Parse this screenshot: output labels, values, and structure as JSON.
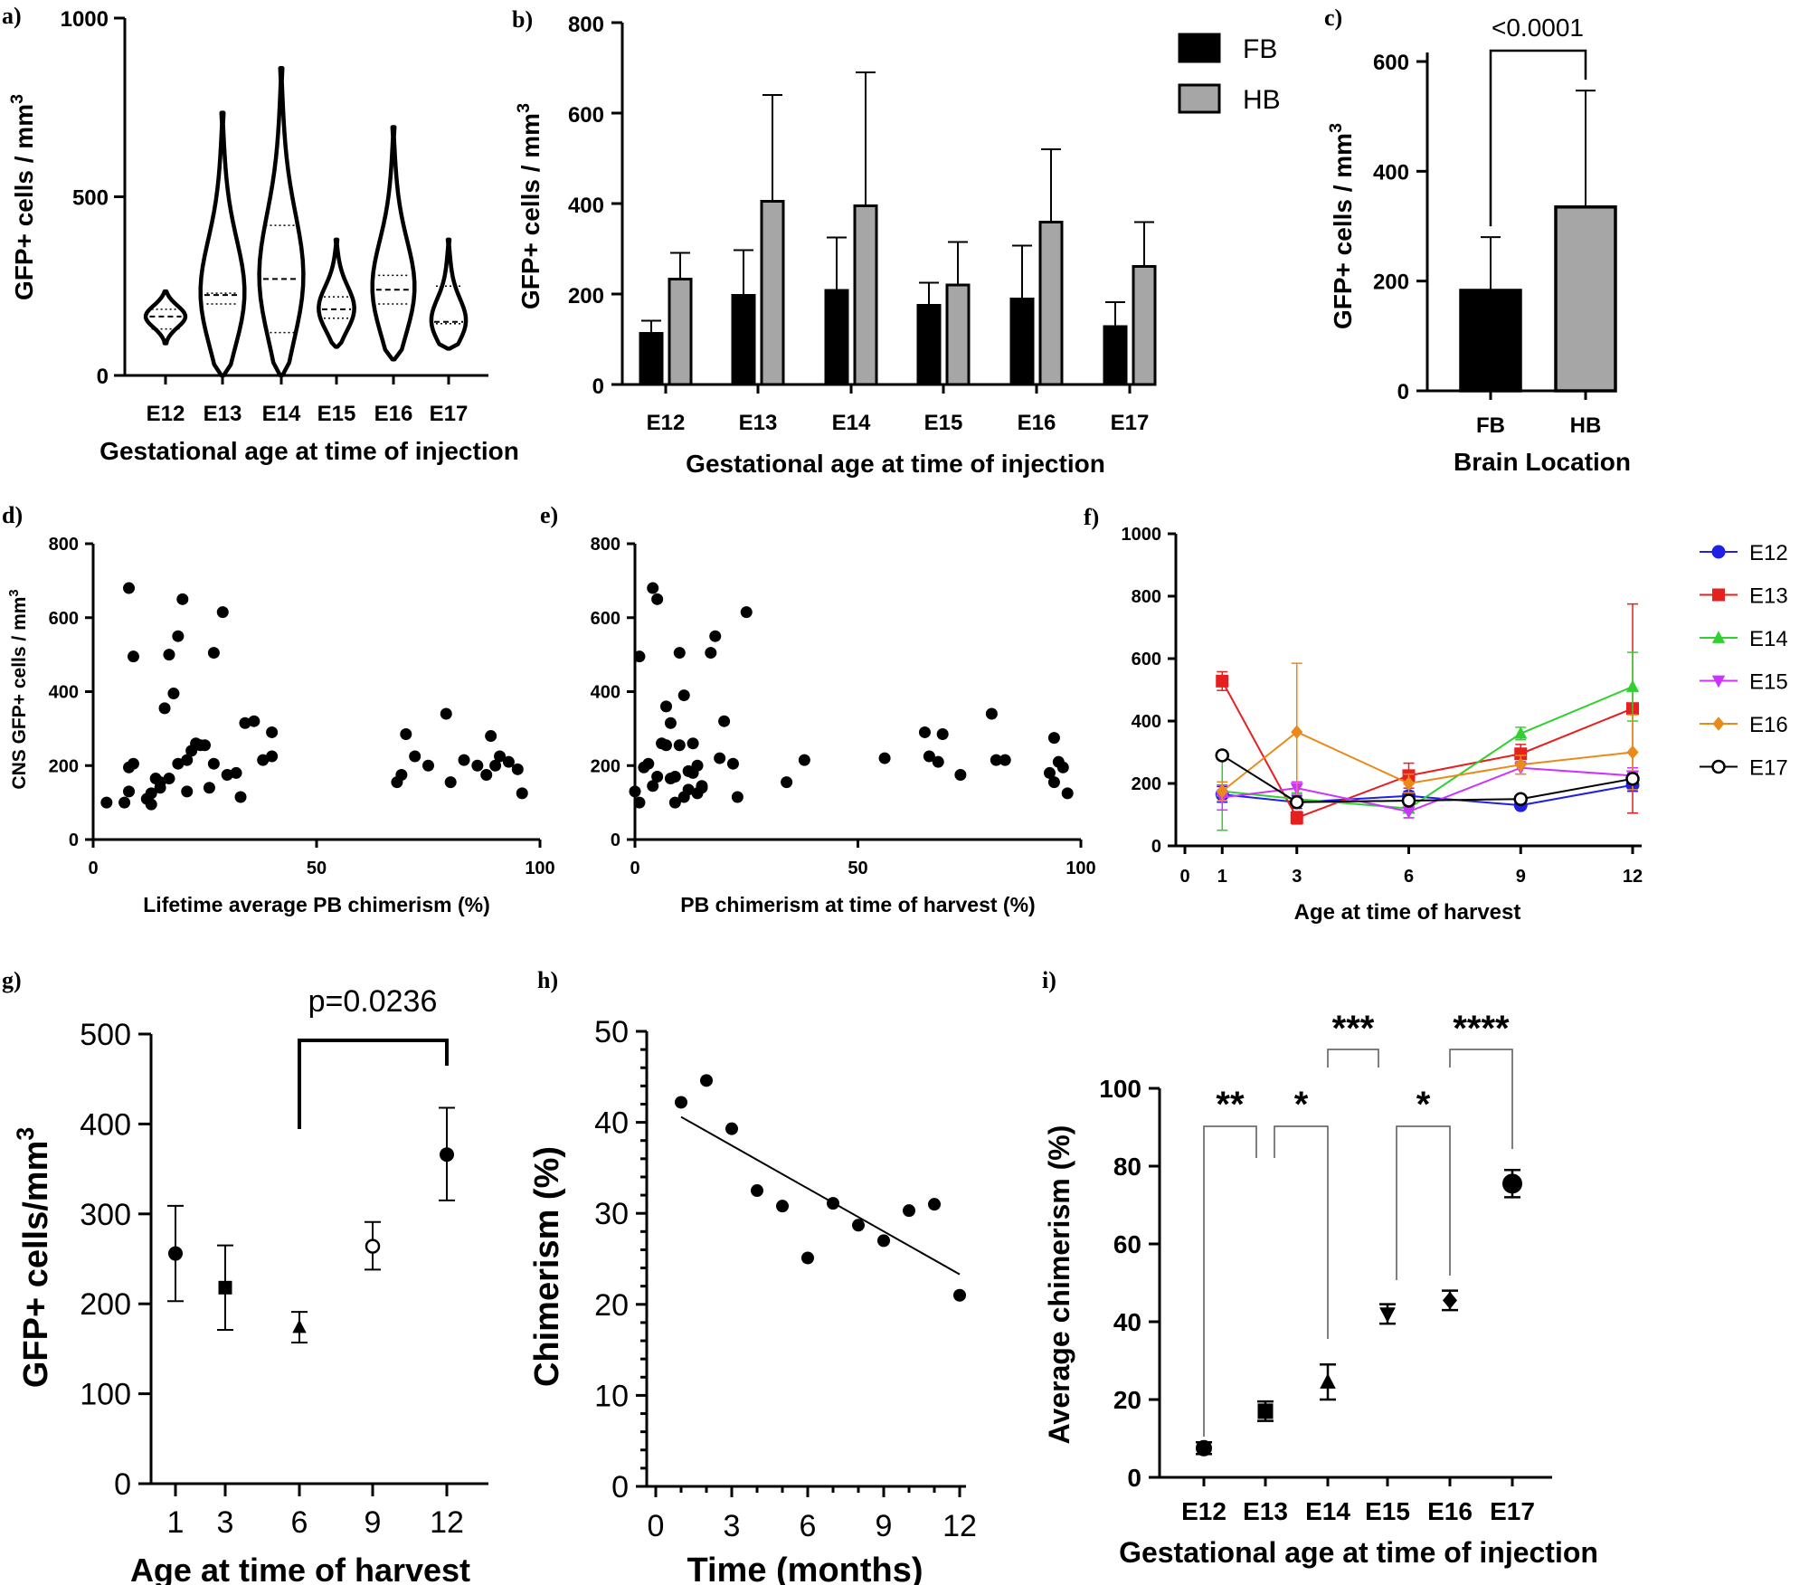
{
  "panel_labels": [
    "a)",
    "b)",
    "c)",
    "d)",
    "e)",
    "f)",
    "g)",
    "h)",
    "i)"
  ],
  "chart_data": [
    {
      "panel": "a)",
      "type": "violin",
      "xlabel": "Gestational age at time of injection",
      "ylabel": "GFP+ cells / mm3",
      "ylim": [
        0,
        1000
      ],
      "yticks": [
        "0",
        "500",
        "1000"
      ],
      "categories": [
        "E12",
        "E13",
        "E14",
        "E15",
        "E16",
        "E17"
      ],
      "series": [
        {
          "name": "E12",
          "min": 90,
          "max": 235,
          "q1": 130,
          "median": 165,
          "q3": 185
        },
        {
          "name": "E13",
          "min": 0,
          "max": 735,
          "q1": 200,
          "median": 225,
          "q3": 230
        },
        {
          "name": "E14",
          "min": 0,
          "max": 860,
          "q1": 120,
          "median": 270,
          "q3": 420
        },
        {
          "name": "E15",
          "min": 80,
          "max": 380,
          "q1": 160,
          "median": 185,
          "q3": 220
        },
        {
          "name": "E16",
          "min": 45,
          "max": 695,
          "q1": 200,
          "median": 240,
          "q3": 280
        },
        {
          "name": "E17",
          "min": 75,
          "max": 380,
          "q1": 145,
          "median": 150,
          "q3": 250
        }
      ]
    },
    {
      "panel": "b)",
      "type": "bar",
      "xlabel": "Gestational age at time of injection",
      "ylabel": "GFP+ cells / mm3",
      "ylim": [
        0,
        800
      ],
      "yticks": [
        "0",
        "200",
        "400",
        "600",
        "800"
      ],
      "categories": [
        "E12",
        "E13",
        "E14",
        "E15",
        "E16",
        "E17"
      ],
      "series": [
        {
          "name": "FB",
          "color": "#000000",
          "values": [
            113,
            197,
            208,
            175,
            189,
            128
          ],
          "errors": [
            28,
            100,
            117,
            50,
            118,
            54
          ]
        },
        {
          "name": "HB",
          "color": "#a6a6a6",
          "values": [
            233,
            405,
            395,
            220,
            359,
            261
          ],
          "errors": [
            58,
            235,
            295,
            95,
            161,
            98
          ]
        }
      ]
    },
    {
      "panel": "c)",
      "type": "bar",
      "xlabel": "Brain Location",
      "ylabel": "GFP+ cells / mm3",
      "ylim": [
        0,
        600
      ],
      "yticks": [
        "0",
        "200",
        "400",
        "600"
      ],
      "categories": [
        "FB",
        "HB"
      ],
      "values": [
        183,
        335
      ],
      "errors": [
        97,
        212
      ],
      "colors": [
        "#000000",
        "#a6a6a6"
      ],
      "annotation": "<0.0001"
    },
    {
      "panel": "d)",
      "type": "scatter",
      "xlabel": "Lifetime average PB chimerism (%)",
      "ylabel": "CNS GFP+ cells / mm3",
      "xlim": [
        0,
        100
      ],
      "ylim": [
        0,
        800
      ],
      "xticks": [
        "0",
        "50",
        "100"
      ],
      "yticks": [
        "0",
        "200",
        "400",
        "600",
        "800"
      ],
      "points": [
        [
          3,
          100
        ],
        [
          7,
          100
        ],
        [
          8,
          680
        ],
        [
          9,
          495
        ],
        [
          8,
          195
        ],
        [
          8,
          130
        ],
        [
          9,
          205
        ],
        [
          12,
          110
        ],
        [
          13,
          125
        ],
        [
          13,
          95
        ],
        [
          14,
          165
        ],
        [
          15,
          140
        ],
        [
          15,
          155
        ],
        [
          16,
          355
        ],
        [
          17,
          165
        ],
        [
          17,
          500
        ],
        [
          18,
          395
        ],
        [
          19,
          550
        ],
        [
          20,
          650
        ],
        [
          19,
          205
        ],
        [
          21,
          215
        ],
        [
          21,
          130
        ],
        [
          22,
          240
        ],
        [
          23,
          260
        ],
        [
          24,
          255
        ],
        [
          25,
          255
        ],
        [
          26,
          140
        ],
        [
          27,
          505
        ],
        [
          27,
          205
        ],
        [
          29,
          615
        ],
        [
          30,
          175
        ],
        [
          32,
          180
        ],
        [
          33,
          115
        ],
        [
          34,
          315
        ],
        [
          36,
          320
        ],
        [
          38,
          215
        ],
        [
          40,
          225
        ],
        [
          40,
          290
        ],
        [
          68,
          155
        ],
        [
          69,
          175
        ],
        [
          70,
          285
        ],
        [
          72,
          225
        ],
        [
          75,
          200
        ],
        [
          79,
          340
        ],
        [
          80,
          155
        ],
        [
          83,
          215
        ],
        [
          86,
          200
        ],
        [
          88,
          175
        ],
        [
          89,
          280
        ],
        [
          90,
          200
        ],
        [
          91,
          225
        ],
        [
          93,
          210
        ],
        [
          95,
          190
        ],
        [
          96,
          125
        ]
      ]
    },
    {
      "panel": "e)",
      "type": "scatter",
      "xlabel": "PB chimerism at time of harvest (%)",
      "ylabel": "",
      "xlim": [
        0,
        100
      ],
      "ylim": [
        0,
        800
      ],
      "xticks": [
        "0",
        "50",
        "100"
      ],
      "yticks": [
        "0",
        "200",
        "400",
        "600",
        "800"
      ],
      "points": [
        [
          0,
          130
        ],
        [
          1,
          100
        ],
        [
          1,
          495
        ],
        [
          2,
          195
        ],
        [
          3,
          205
        ],
        [
          4,
          680
        ],
        [
          4,
          145
        ],
        [
          5,
          650
        ],
        [
          5,
          170
        ],
        [
          6,
          260
        ],
        [
          7,
          360
        ],
        [
          7,
          255
        ],
        [
          8,
          315
        ],
        [
          8,
          165
        ],
        [
          9,
          170
        ],
        [
          9,
          100
        ],
        [
          10,
          505
        ],
        [
          10,
          255
        ],
        [
          11,
          390
        ],
        [
          11,
          115
        ],
        [
          12,
          185
        ],
        [
          12,
          135
        ],
        [
          13,
          260
        ],
        [
          13,
          180
        ],
        [
          14,
          200
        ],
        [
          14,
          125
        ],
        [
          15,
          145
        ],
        [
          15,
          140
        ],
        [
          17,
          505
        ],
        [
          18,
          550
        ],
        [
          19,
          220
        ],
        [
          20,
          320
        ],
        [
          22,
          205
        ],
        [
          23,
          115
        ],
        [
          25,
          615
        ],
        [
          34,
          155
        ],
        [
          38,
          215
        ],
        [
          56,
          220
        ],
        [
          65,
          290
        ],
        [
          66,
          225
        ],
        [
          68,
          210
        ],
        [
          69,
          285
        ],
        [
          73,
          175
        ],
        [
          80,
          340
        ],
        [
          81,
          215
        ],
        [
          83,
          215
        ],
        [
          93,
          180
        ],
        [
          94,
          275
        ],
        [
          94,
          155
        ],
        [
          95,
          210
        ],
        [
          96,
          195
        ],
        [
          97,
          125
        ]
      ]
    },
    {
      "panel": "f)",
      "type": "line",
      "xlabel": "Age at time of harvest",
      "ylabel": "",
      "xlim": [
        0,
        12
      ],
      "ylim": [
        0,
        1000
      ],
      "xticks": [
        "0",
        "1",
        "3",
        "6",
        "9",
        "12"
      ],
      "yticks": [
        "0",
        "200",
        "400",
        "600",
        "800",
        "1000"
      ],
      "x": [
        1,
        3,
        6,
        9,
        12
      ],
      "series": [
        {
          "name": "E12",
          "color": "#1f1fe6",
          "marker": "circle",
          "values": [
            165,
            140,
            160,
            130,
            195
          ],
          "errors": [
            25,
            20,
            15,
            10,
            20
          ]
        },
        {
          "name": "E13",
          "color": "#e61f1f",
          "marker": "square",
          "values": [
            528,
            90,
            225,
            295,
            440
          ],
          "errors": [
            30,
            20,
            40,
            30,
            335
          ]
        },
        {
          "name": "E14",
          "color": "#30d030",
          "marker": "triangle",
          "values": [
            175,
            150,
            120,
            360,
            510
          ],
          "errors": [
            125,
            20,
            30,
            20,
            110
          ]
        },
        {
          "name": "E15",
          "color": "#cc33ff",
          "marker": "triangle-down",
          "values": [
            155,
            185,
            110,
            250,
            225
          ],
          "errors": [
            40,
            20,
            20,
            20,
            25
          ]
        },
        {
          "name": "E16",
          "color": "#ea8a1a",
          "marker": "diamond",
          "values": [
            175,
            365,
            200,
            260,
            300
          ],
          "errors": [
            30,
            220,
            30,
            30,
            120
          ]
        },
        {
          "name": "E17",
          "color": "#000000",
          "marker": "open-circle",
          "values": [
            290,
            140,
            145,
            150,
            215
          ],
          "errors": [
            10,
            10,
            10,
            10,
            15
          ]
        }
      ]
    },
    {
      "panel": "g)",
      "type": "scatter",
      "xlabel": "Age at time of harvest",
      "ylabel": "GFP+ cells/mm3",
      "ylim": [
        0,
        500
      ],
      "yticks": [
        "0",
        "100",
        "200",
        "300",
        "400",
        "500"
      ],
      "categories": [
        "1",
        "3",
        "6",
        "9",
        "12"
      ],
      "values": [
        256,
        218,
        174,
        264,
        366
      ],
      "errors_low": [
        53,
        47,
        17,
        26,
        51
      ],
      "errors_high": [
        53,
        47,
        17,
        27,
        52
      ],
      "annotation": "p=0.0236"
    },
    {
      "panel": "h)",
      "type": "scatter",
      "xlabel": "Time (months)",
      "ylabel": "Chimerism (%)",
      "xlim": [
        0,
        12
      ],
      "ylim": [
        0,
        50
      ],
      "xticks": [
        "0",
        "3",
        "6",
        "9",
        "12"
      ],
      "yticks": [
        "0",
        "10",
        "20",
        "30",
        "40",
        "50"
      ],
      "points": [
        [
          1,
          42.2
        ],
        [
          2,
          44.6
        ],
        [
          3,
          39.3
        ],
        [
          4,
          32.5
        ],
        [
          5,
          30.8
        ],
        [
          6,
          25.1
        ],
        [
          7,
          31.1
        ],
        [
          8,
          28.7
        ],
        [
          9,
          27
        ],
        [
          10,
          30.3
        ],
        [
          11,
          31
        ],
        [
          12,
          21
        ]
      ],
      "fit": [
        [
          1,
          40.6
        ],
        [
          12,
          23.3
        ]
      ]
    },
    {
      "panel": "i)",
      "type": "scatter",
      "xlabel": "Gestational age at time of injection",
      "ylabel": "Average chimerism (%)",
      "ylim": [
        0,
        100
      ],
      "yticks": [
        "0",
        "20",
        "40",
        "60",
        "80",
        "100"
      ],
      "categories": [
        "E12",
        "E13",
        "E14",
        "E15",
        "E16",
        "E17"
      ],
      "values": [
        7.5,
        17,
        24.5,
        42,
        45.5,
        75.5
      ],
      "errors": [
        1.5,
        2.5,
        4.5,
        2.5,
        2.5,
        3.5
      ],
      "markers": [
        "circle",
        "square",
        "triangle",
        "triangle-down",
        "diamond",
        "circle"
      ],
      "significance": [
        "**",
        "*",
        "***",
        "*",
        "****"
      ]
    }
  ]
}
